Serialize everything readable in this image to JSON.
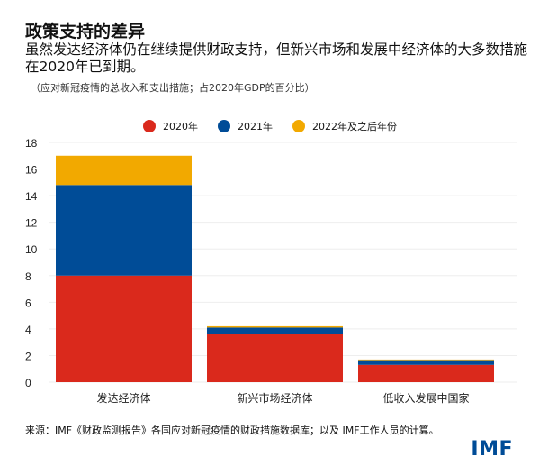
{
  "title": "政策支持的差异",
  "subtitle": "虽然发达经济体仍在继续提供财政支持，但新兴市场和发展中经济体的大多数措施在2020年已到期。",
  "note": "（应对新冠疫情的总收入和支出措施；占2020年GDP的百分比）",
  "source": "来源：IMF《财政监测报告》各国应对新冠疫情的财政措施数据库；以及 IMF工作人员的计算。",
  "logo": "IMF",
  "chart_data": {
    "type": "bar",
    "stacked": true,
    "categories": [
      "发达经济体",
      "新兴市场经济体",
      "低收入发展中国家"
    ],
    "series": [
      {
        "name": "2020年",
        "color": "#DA291C",
        "values": [
          8.0,
          3.6,
          1.3
        ]
      },
      {
        "name": "2021年",
        "color": "#004C97",
        "values": [
          6.8,
          0.5,
          0.35
        ]
      },
      {
        "name": "2022年及之后年份",
        "color": "#F2A900",
        "values": [
          2.2,
          0.1,
          0.05
        ]
      }
    ],
    "ylim": [
      0,
      18
    ],
    "yticks": [
      0,
      2,
      4,
      6,
      8,
      10,
      12,
      14,
      16,
      18
    ],
    "grid": true,
    "legend": "top-center"
  }
}
